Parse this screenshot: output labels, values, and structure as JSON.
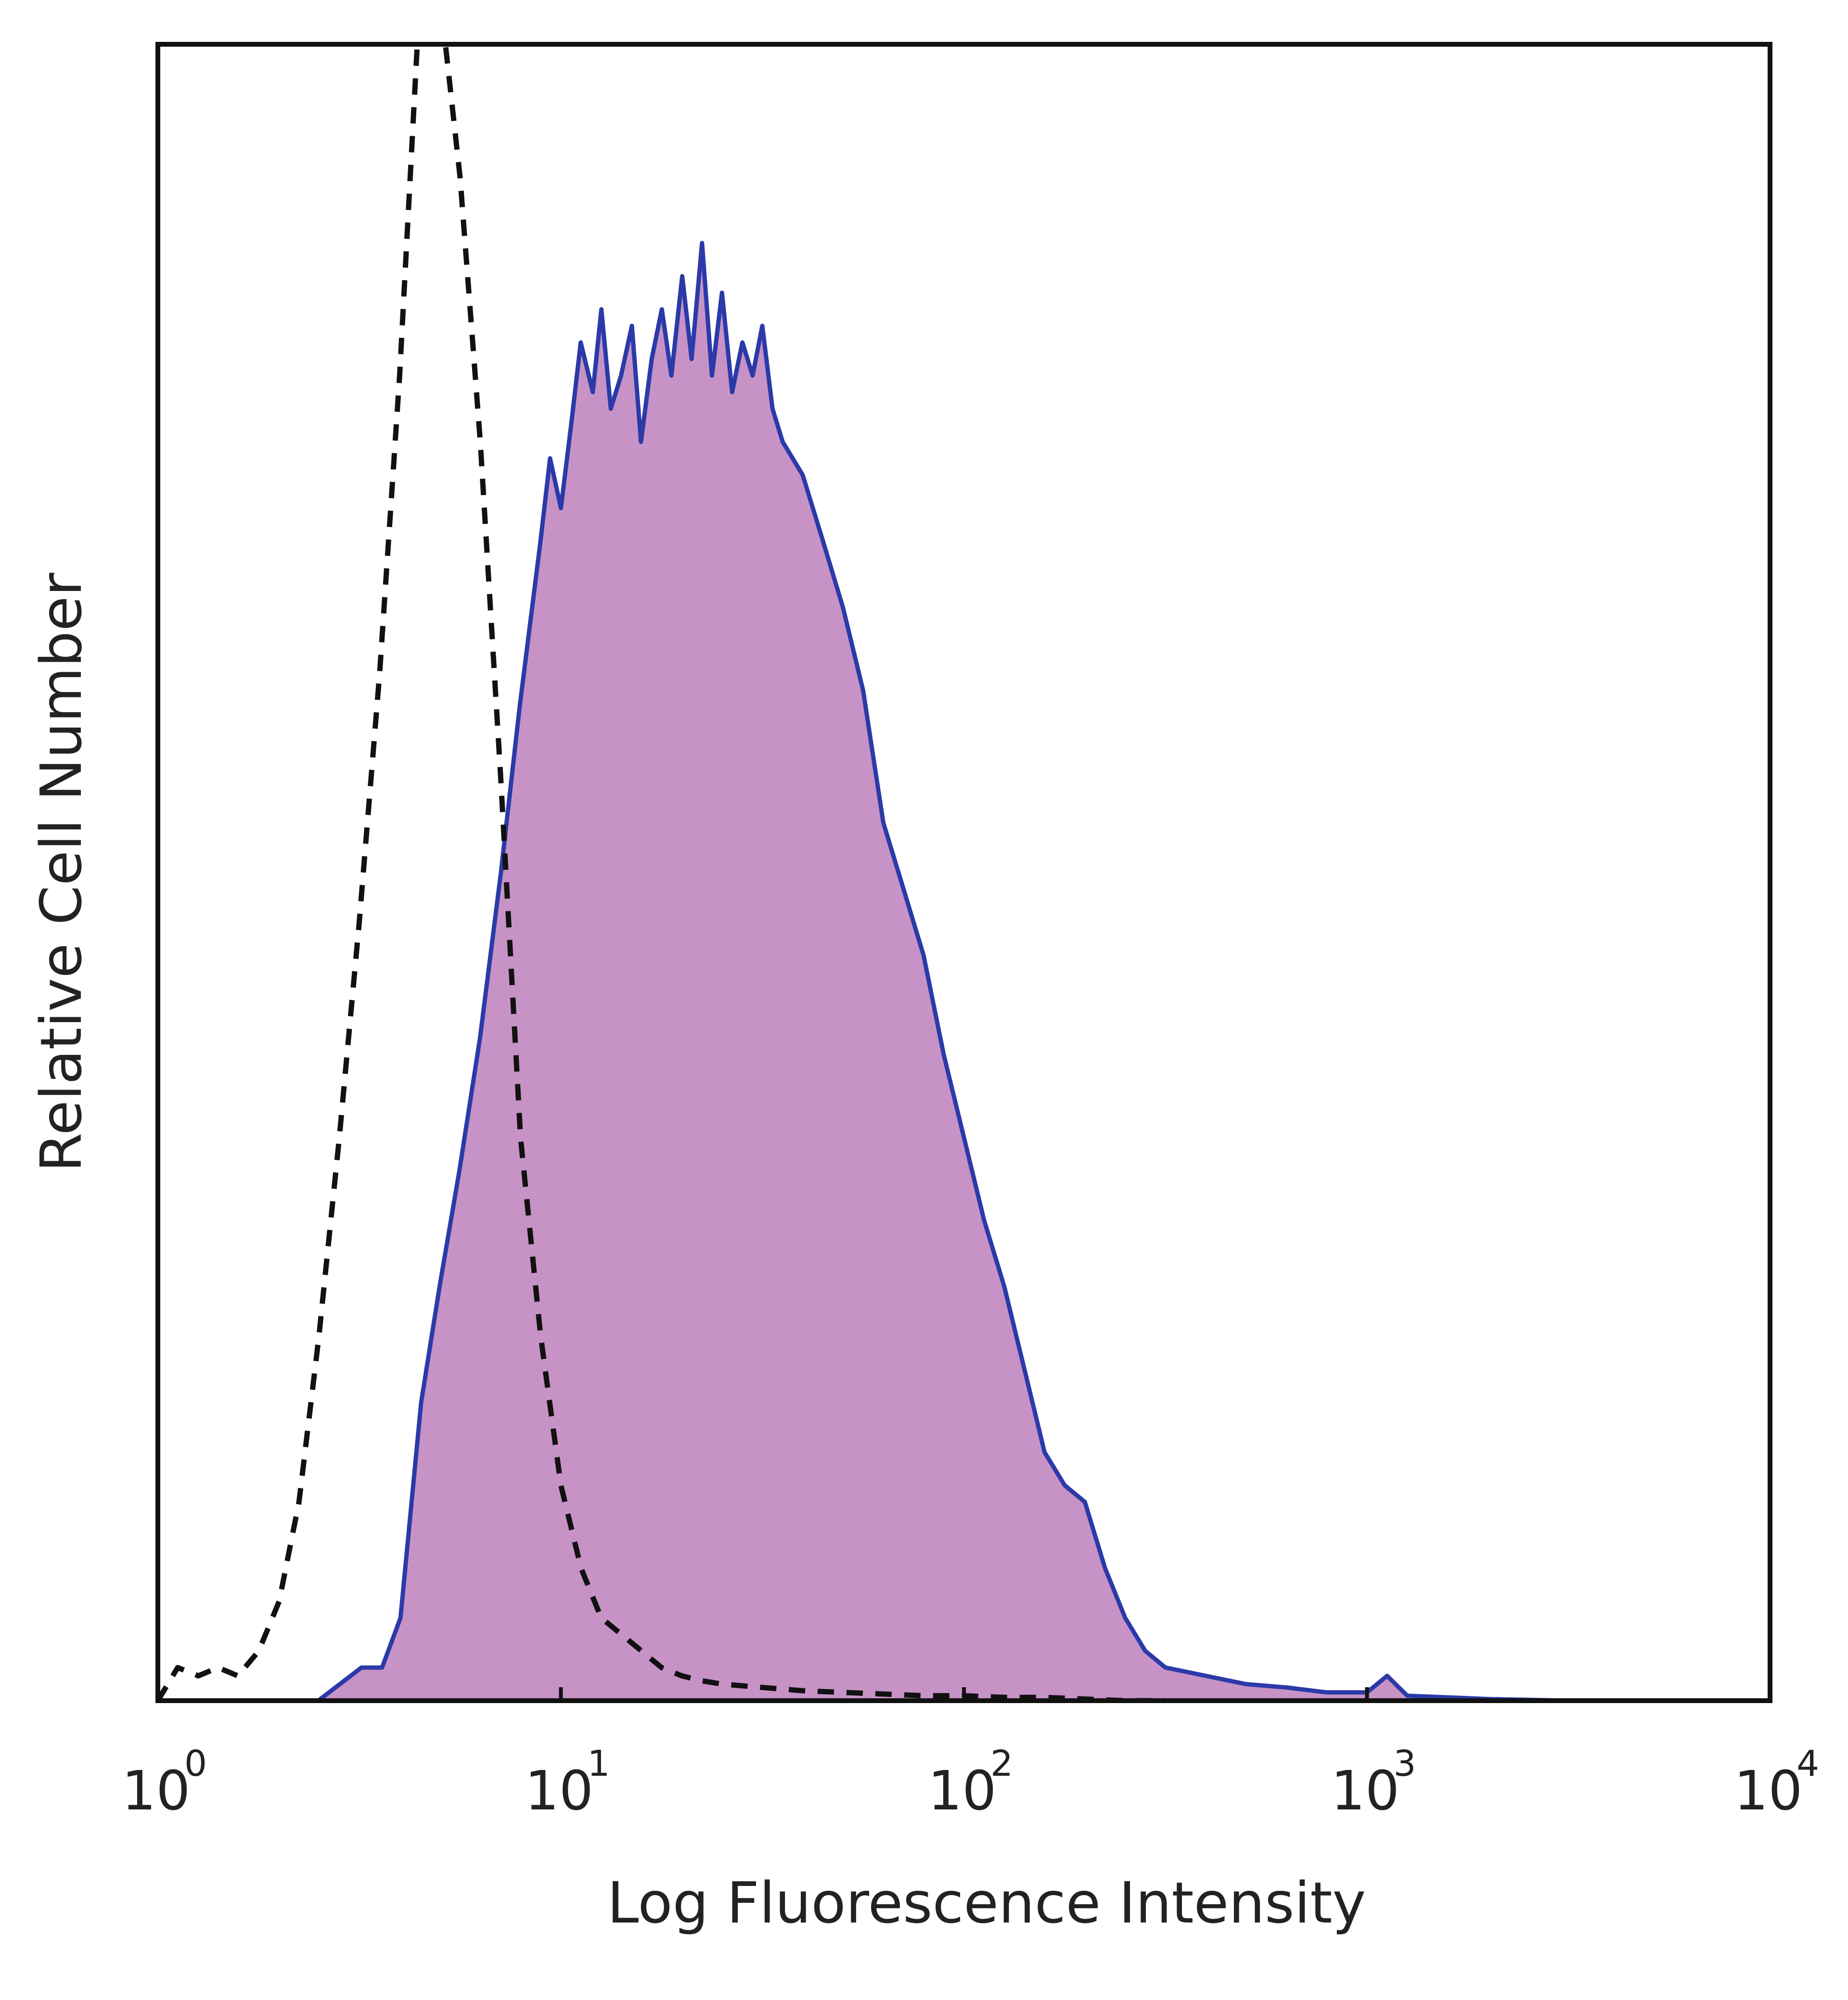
{
  "chart_data": {
    "type": "area",
    "title": "",
    "xlabel": "Log Fluorescence Intensity",
    "ylabel": "Relative Cell Number",
    "x_scale": "log",
    "xlim": [
      1,
      10000
    ],
    "ylim": [
      0,
      100
    ],
    "grid": false,
    "legend": "none",
    "x_ticks": [
      {
        "base": "10",
        "exp": "0",
        "value": 1
      },
      {
        "base": "10",
        "exp": "1",
        "value": 10
      },
      {
        "base": "10",
        "exp": "2",
        "value": 100
      },
      {
        "base": "10",
        "exp": "3",
        "value": 1000
      },
      {
        "base": "10",
        "exp": "4",
        "value": 10000
      }
    ],
    "series": [
      {
        "style": "filled",
        "fill_color": "#c793c6",
        "line_color": "#2b3aa8",
        "x": [
          1.0,
          1.25,
          1.6,
          2.0,
          2.5,
          3.2,
          3.6,
          4.0,
          4.5,
          5.0,
          5.6,
          6.3,
          7.1,
          7.9,
          8.9,
          9.4,
          10.0,
          10.6,
          11.2,
          12.0,
          12.6,
          13.3,
          14.1,
          15.0,
          15.8,
          16.8,
          17.8,
          18.8,
          20.0,
          21.1,
          22.4,
          23.7,
          25.1,
          26.6,
          28.2,
          29.9,
          31.6,
          33.5,
          35.5,
          39.8,
          44.7,
          50.1,
          56.2,
          63.1,
          70.8,
          79.4,
          89.1,
          100.0,
          112.2,
          125.9,
          141.3,
          158.5,
          177.8,
          199.5,
          223.9,
          251.2,
          281.8,
          316.2,
          398.1,
          501.2,
          631.0,
          794.3,
          1000.0,
          1122.0,
          1258.9,
          1584.9,
          2000.0,
          3162.3,
          5011.9,
          10000.0
        ],
        "y": [
          0.0,
          0.0,
          0.0,
          0.0,
          0.0,
          2.0,
          2.0,
          5.0,
          18.0,
          25.0,
          32.0,
          40.0,
          50.0,
          60.0,
          70.0,
          75.0,
          72.0,
          77.0,
          82.0,
          79.0,
          84.0,
          78.0,
          80.0,
          83.0,
          76.0,
          81.0,
          84.0,
          80.0,
          86.0,
          81.0,
          88.0,
          80.0,
          85.0,
          79.0,
          82.0,
          80.0,
          83.0,
          78.0,
          76.0,
          74.0,
          70.0,
          66.0,
          61.0,
          53.0,
          49.0,
          45.0,
          39.0,
          34.0,
          29.0,
          25.0,
          20.0,
          15.0,
          13.0,
          12.0,
          8.0,
          5.0,
          3.0,
          2.0,
          1.5,
          1.0,
          0.8,
          0.5,
          0.5,
          1.5,
          0.3,
          0.2,
          0.1,
          0.0,
          0.0,
          0.0
        ]
      },
      {
        "style": "dashed",
        "line_color": "#111111",
        "x": [
          1.0,
          1.12,
          1.26,
          1.41,
          1.58,
          1.78,
          2.0,
          2.24,
          2.51,
          2.82,
          3.16,
          3.55,
          3.98,
          4.47,
          5.01,
          5.62,
          6.31,
          7.08,
          7.94,
          8.91,
          10.0,
          11.22,
          12.59,
          14.13,
          15.85,
          17.78,
          19.95,
          22.39,
          25.12,
          31.62,
          39.81,
          50.12,
          63.1,
          79.43,
          100.0,
          125.9,
          158.5,
          199.5,
          251.2,
          316.2
        ],
        "y": [
          0.0,
          2.0,
          1.5,
          2.0,
          1.5,
          3.0,
          6.0,
          12.0,
          22.0,
          34.0,
          47.0,
          62.0,
          80.0,
          103.0,
          103.0,
          92.0,
          76.0,
          56.0,
          34.0,
          22.0,
          13.0,
          8.0,
          5.0,
          4.0,
          3.0,
          2.0,
          1.5,
          1.2,
          1.0,
          0.8,
          0.6,
          0.5,
          0.4,
          0.3,
          0.3,
          0.2,
          0.2,
          0.1,
          0.0,
          0.0
        ]
      }
    ]
  }
}
